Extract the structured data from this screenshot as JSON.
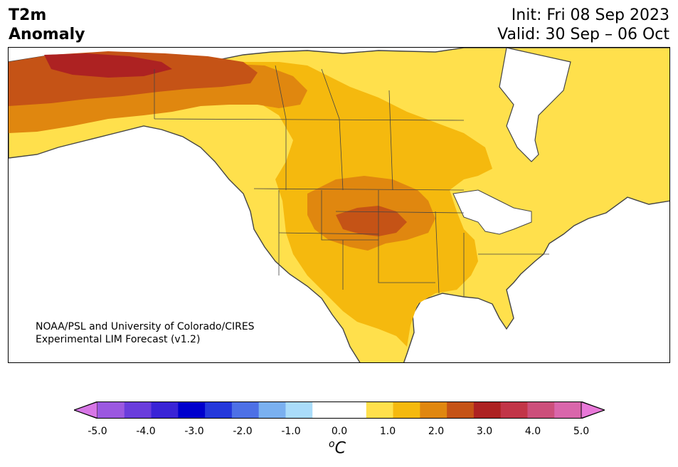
{
  "header": {
    "variable_line1": "T2m",
    "variable_line2": "Anomaly",
    "init": "Init: Fri 08 Sep 2023",
    "valid": "Valid: 30 Sep – 06 Oct"
  },
  "credit": {
    "line1": "NOAA/PSL and University of Colorado/CIRES",
    "line2": "Experimental LIM Forecast (v1.2)"
  },
  "colorbar": {
    "ticks": [
      "-5.0",
      "-4.0",
      "-3.0",
      "-2.0",
      "-1.0",
      "0.0",
      "1.0",
      "2.0",
      "3.0",
      "4.0",
      "5.0"
    ],
    "unit_super": "o",
    "unit_main": "C",
    "colors": [
      "#d776e6",
      "#9b58e0",
      "#6a3ddc",
      "#3a24d6",
      "#0000cd",
      "#2438db",
      "#4d70e6",
      "#7ab0f0",
      "#aadcfa",
      "#ffffff",
      "#ffffff",
      "#ffe04c",
      "#f5b90e",
      "#e0870f",
      "#c55316",
      "#ad2222",
      "#c23548",
      "#cc4f7b",
      "#d966ab",
      "#e878d8"
    ]
  },
  "map": {
    "region": "North America",
    "anomaly_colors": {
      "0.5-1.0": "#ffe04c",
      "1.0-1.5": "#f5b90e",
      "1.5-2.0": "#e0870f",
      "2.0-2.5": "#c55316",
      "2.5-3.0": "#ad2222"
    },
    "land_outline_color": "#444444"
  }
}
